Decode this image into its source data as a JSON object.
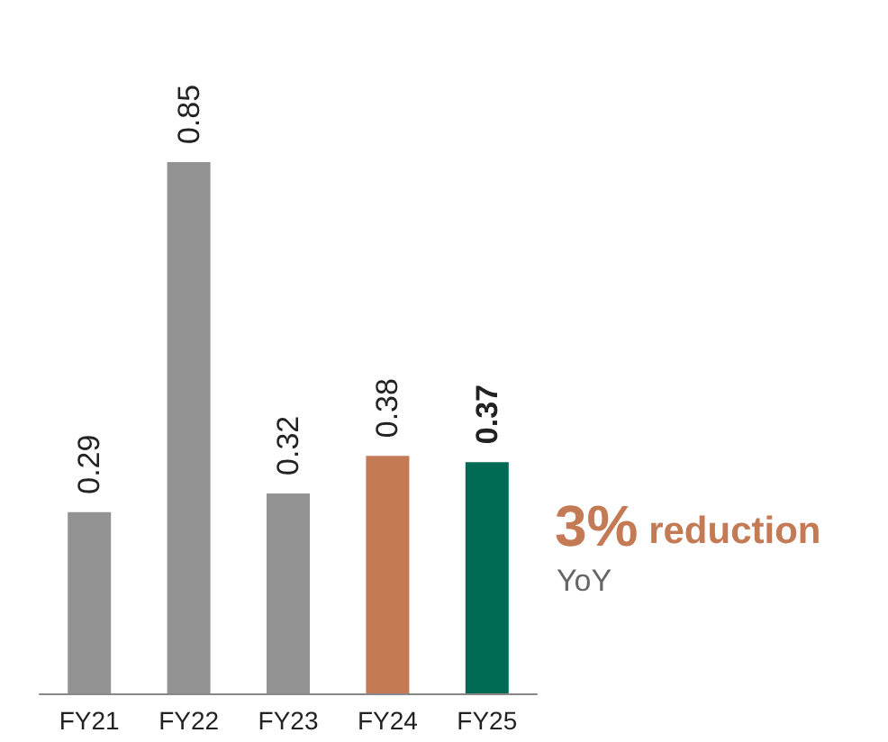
{
  "chart_data": {
    "type": "bar",
    "categories": [
      "FY21",
      "FY22",
      "FY23",
      "FY24",
      "FY25"
    ],
    "values": [
      0.29,
      0.85,
      0.32,
      0.38,
      0.37
    ],
    "colors": [
      "#939393",
      "#939393",
      "#939393",
      "#c47a55",
      "#006b54"
    ],
    "data_labels": true,
    "annotations": [
      "3% reduction",
      "YoY"
    ]
  }
}
